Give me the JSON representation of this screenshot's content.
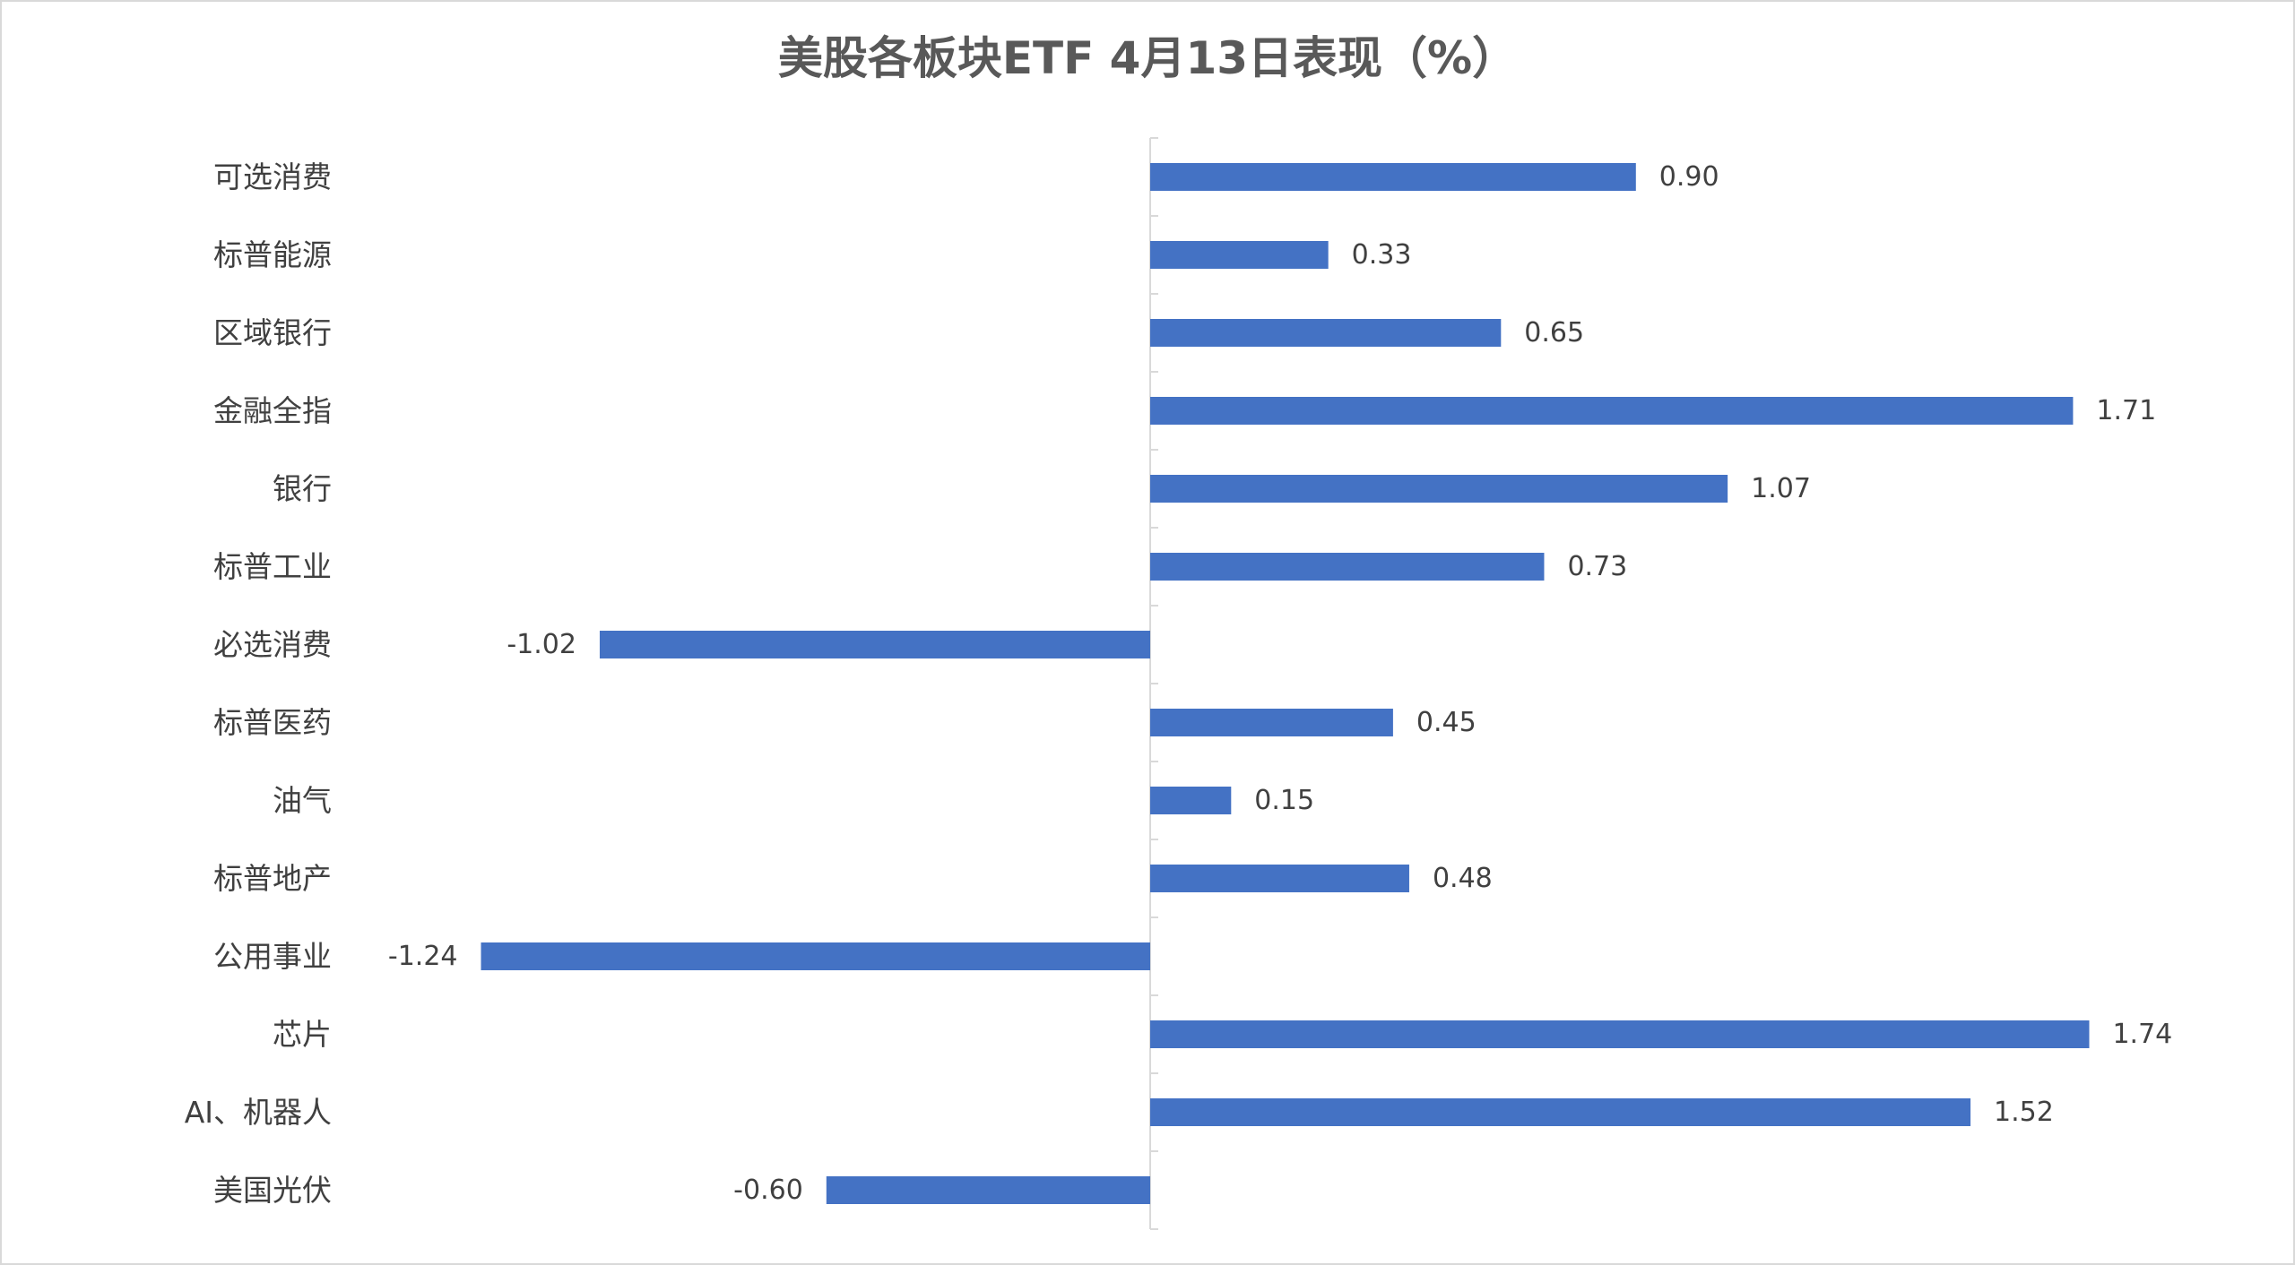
{
  "chart_data": {
    "type": "bar",
    "orientation": "horizontal",
    "title": "美股各板块ETF 4月13日表现（%）",
    "xlabel": "",
    "ylabel": "",
    "categories": [
      "可选消费",
      "标普能源",
      "区域银行",
      "金融全指",
      "银行",
      "标普工业",
      "必选消费",
      "标普医药",
      "油气",
      "标普地产",
      "公用事业",
      "芯片",
      "AI、机器人",
      "美国光伏"
    ],
    "values": [
      0.9,
      0.33,
      0.65,
      1.71,
      1.07,
      0.73,
      -1.02,
      0.45,
      0.15,
      0.48,
      -1.24,
      1.74,
      1.52,
      -0.6
    ],
    "value_labels": [
      "0.90",
      "0.33",
      "0.65",
      "1.71",
      "1.07",
      "0.73",
      "-1.02",
      "0.45",
      "0.15",
      "0.48",
      "-1.24",
      "1.74",
      "1.52",
      "-0.60"
    ],
    "xlim": [
      -2,
      2
    ],
    "grid": false,
    "legend": "none",
    "bar_color": "#4472c4",
    "axis_color": "#d9d9d9"
  }
}
